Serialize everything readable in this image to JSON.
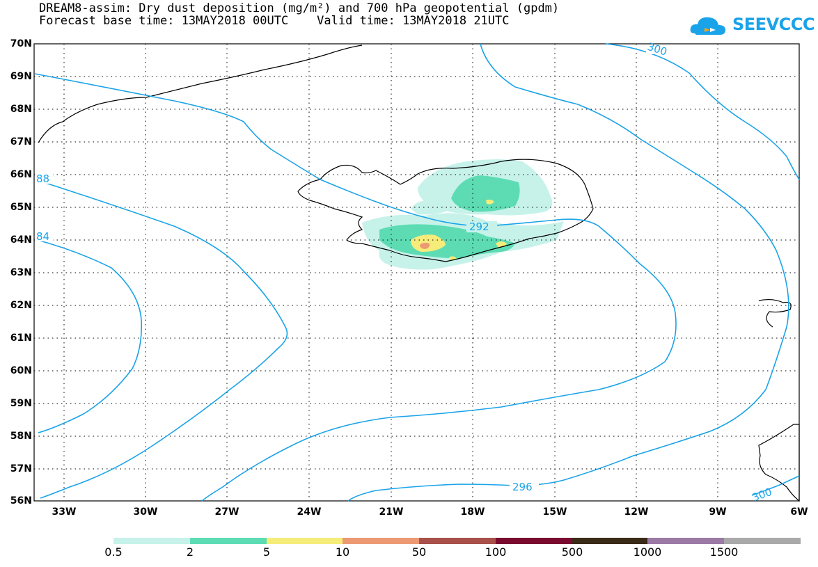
{
  "header": {
    "title_line1": "DREAM8-assim: Dry dust deposition (mg/m²) and 700 hPa geopotential (gpdm)",
    "title_line2": "Forecast base time: 13MAY2018 00UTC    Valid time: 13MAY2018 21UTC"
  },
  "logo": {
    "text": "SEEVCCC",
    "icon": "cloud-icon",
    "color": "#1aa3e8"
  },
  "map": {
    "lat_labels": [
      "70N",
      "69N",
      "68N",
      "67N",
      "66N",
      "65N",
      "64N",
      "63N",
      "62N",
      "61N",
      "60N",
      "59N",
      "58N",
      "57N",
      "56N"
    ],
    "lon_labels": [
      "33W",
      "30W",
      "27W",
      "24W",
      "21W",
      "18W",
      "15W",
      "12W",
      "9W",
      "6W"
    ],
    "contour_color": "#1aa3e8",
    "contour_labels": [
      "300",
      "88",
      "84",
      "292",
      "296",
      "300"
    ]
  },
  "legend": {
    "labels": [
      "0.5",
      "2",
      "5",
      "10",
      "50",
      "100",
      "500",
      "1000",
      "1500"
    ],
    "colors": [
      "#c6f2ea",
      "#5ddcb4",
      "#f6ec7a",
      "#ec9a74",
      "#a8504a",
      "#7a0a30",
      "#3a2a18",
      "#9c7aa6",
      "#a9a9a9"
    ]
  }
}
